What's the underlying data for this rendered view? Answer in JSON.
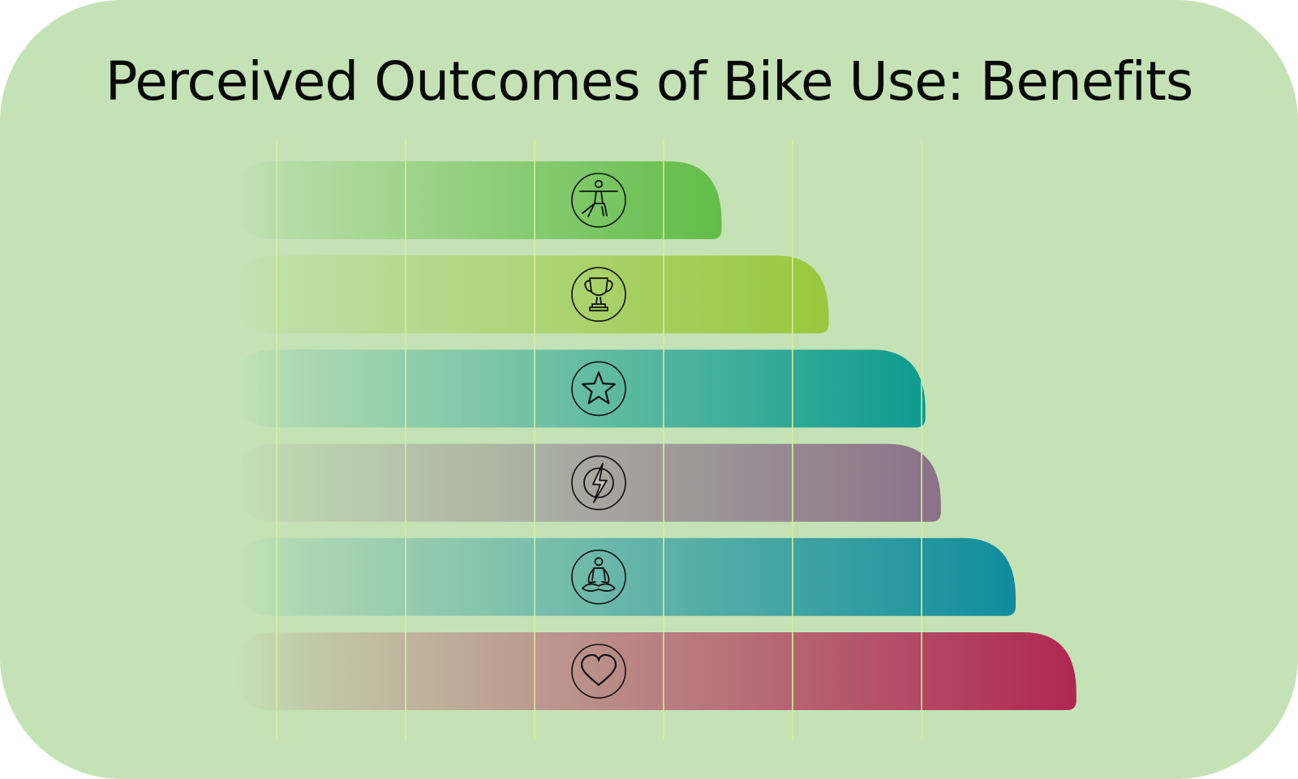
{
  "chart_data": {
    "type": "bar",
    "orientation": "horizontal",
    "title": "Perceived Outcomes of Bike Use: Benefits",
    "xlabel": "",
    "ylabel": "",
    "grid": true,
    "xlim": [
      0,
      6
    ],
    "categories": [
      "fitness-icon",
      "trophy-icon",
      "star-icon",
      "energy-icon",
      "meditation-icon",
      "heart-icon"
    ],
    "values": [
      3.45,
      4.28,
      5.03,
      5.15,
      5.73,
      6.2
    ],
    "colors": [
      "#62bd48",
      "#98c83c",
      "#0e9b90",
      "#8b7189",
      "#108c9d",
      "#af2752"
    ],
    "icons": [
      "fitness-icon",
      "trophy-icon",
      "star-icon",
      "energy-icon",
      "meditation-icon",
      "heart-icon"
    ]
  }
}
